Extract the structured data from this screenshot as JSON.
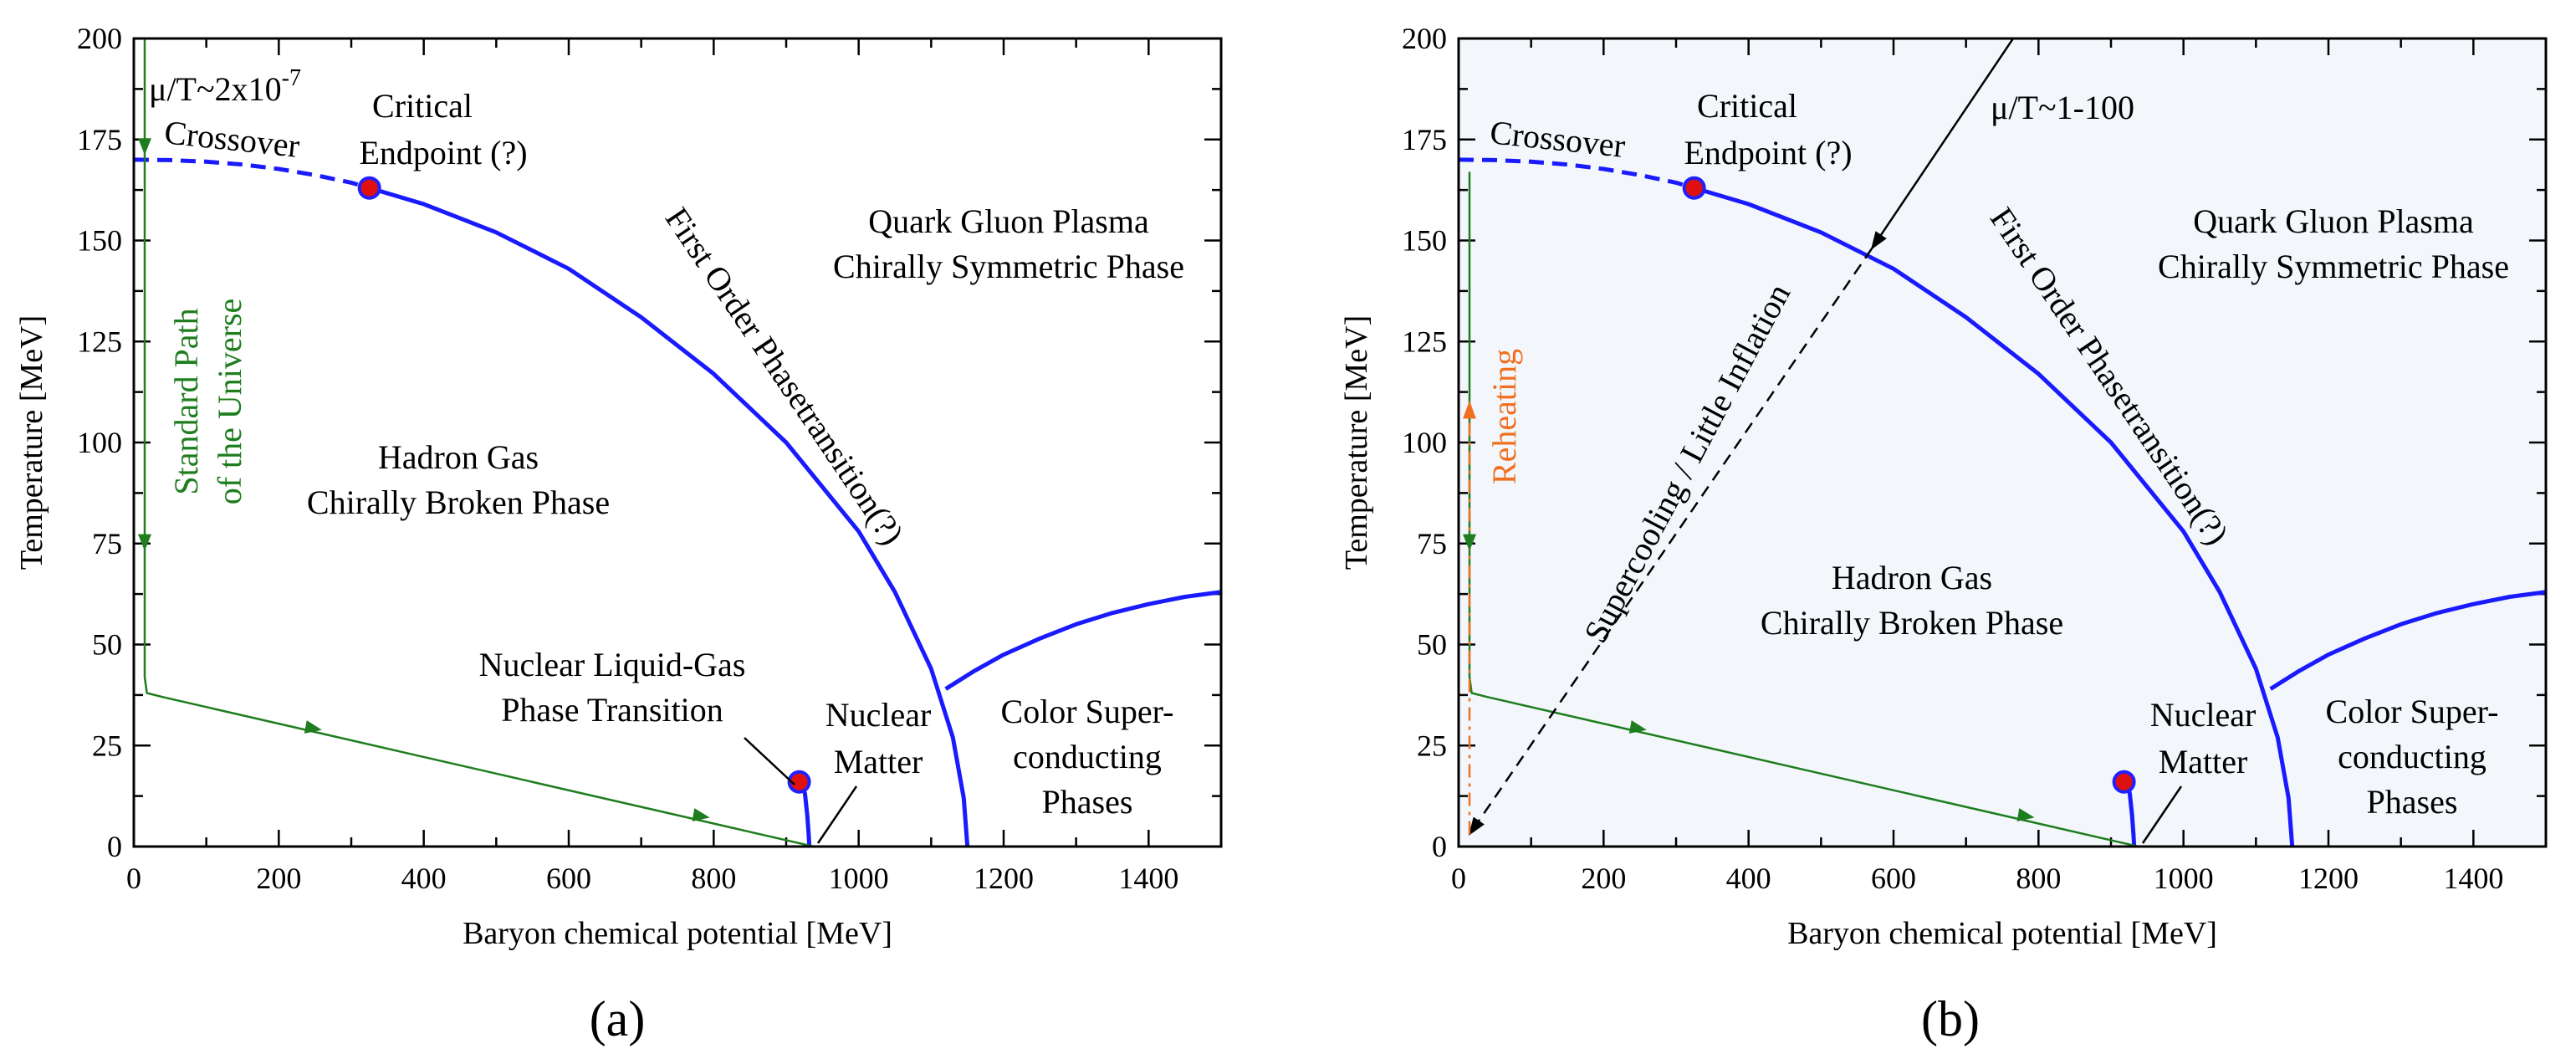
{
  "colors": {
    "phase_line": "#1a1aff",
    "path_green": "#1e7d1e",
    "reheat_orange": "#f07020",
    "point_fill": "#e01010",
    "point_stroke": "#2020ff",
    "axis": "#000000",
    "panel_b_bg": "#f3f7fb"
  },
  "chart_data": [
    {
      "type": "line",
      "panel_label": "(a)",
      "xlabel": "Baryon chemical potential [MeV]",
      "ylabel": "Temperature [MeV]",
      "xlim": [
        0,
        1500
      ],
      "ylim": [
        0,
        200
      ],
      "xticks": [
        0,
        200,
        400,
        600,
        800,
        1000,
        1200,
        1400
      ],
      "yticks": [
        0,
        25,
        50,
        75,
        100,
        125,
        150,
        175,
        200
      ],
      "series": [
        {
          "name": "Crossover",
          "style": "dashed",
          "color": "phase_line",
          "x": [
            0,
            50,
            100,
            150,
            200,
            250,
            300,
            325
          ],
          "y": [
            170,
            169.9,
            169.5,
            168.8,
            167.7,
            166.2,
            164.3,
            163
          ]
        },
        {
          "name": "First Order Phasetransition",
          "style": "solid",
          "color": "phase_line",
          "x": [
            325,
            400,
            500,
            600,
            700,
            800,
            900,
            1000,
            1050,
            1100,
            1130,
            1145,
            1150
          ],
          "y": [
            163,
            159,
            152,
            143,
            131,
            117,
            100,
            78,
            63,
            44,
            27,
            12,
            0
          ]
        },
        {
          "name": "Color superconducting boundary",
          "style": "solid",
          "color": "phase_line",
          "x": [
            1120,
            1160,
            1200,
            1250,
            1300,
            1350,
            1400,
            1450,
            1500
          ],
          "y": [
            39,
            43.5,
            47.5,
            51.5,
            55,
            57.8,
            60,
            61.8,
            63
          ]
        },
        {
          "name": "Nuclear liquid-gas line",
          "style": "solid",
          "color": "phase_line",
          "x": [
            922,
            926,
            929,
            931,
            932
          ],
          "y": [
            16,
            13,
            8,
            3,
            0
          ]
        },
        {
          "name": "Standard Path of the Universe",
          "style": "solid",
          "color": "path_green",
          "x": [
            15,
            15,
            18,
            40,
            938
          ],
          "y": [
            200,
            42,
            38,
            37,
            0
          ]
        }
      ],
      "points": [
        {
          "name": "Critical Endpoint",
          "x": 325,
          "y": 163
        },
        {
          "name": "Nuclear liquid-gas endpoint",
          "x": 918,
          "y": 16
        }
      ],
      "labels": {
        "mu_over_T": "μ/T~2x10",
        "mu_over_T_exp": "-7",
        "crossover": "Crossover",
        "critical_1": "Critical",
        "critical_2": "Endpoint (?)",
        "qgp_1": "Quark Gluon Plasma",
        "qgp_2": "Chirally Symmetric Phase",
        "first_order": "First Order Phasetransition(?)",
        "hadron_1": "Hadron Gas",
        "hadron_2": "Chirally Broken Phase",
        "standard_1": "Standard Path",
        "standard_2": "of the Universe",
        "nlg_1": "Nuclear Liquid-Gas",
        "nlg_2": "Phase Transition",
        "nuclear_1": "Nuclear",
        "nuclear_2": "Matter",
        "csc_1": "Color Super-",
        "csc_2": "conducting",
        "csc_3": "Phases"
      }
    },
    {
      "type": "line",
      "panel_label": "(b)",
      "xlabel": "Baryon chemical potential [MeV]",
      "ylabel": "Temperature [MeV]",
      "xlim": [
        0,
        1500
      ],
      "ylim": [
        0,
        200
      ],
      "xticks": [
        0,
        200,
        400,
        600,
        800,
        1000,
        1200,
        1400
      ],
      "yticks": [
        0,
        25,
        50,
        75,
        100,
        125,
        150,
        175,
        200
      ],
      "series": [
        {
          "name": "Crossover",
          "style": "dashed",
          "color": "phase_line",
          "x": [
            0,
            50,
            100,
            150,
            200,
            250,
            300,
            325
          ],
          "y": [
            170,
            169.9,
            169.5,
            168.8,
            167.7,
            166.2,
            164.3,
            163
          ]
        },
        {
          "name": "First Order Phasetransition",
          "style": "solid",
          "color": "phase_line",
          "x": [
            325,
            400,
            500,
            600,
            700,
            800,
            900,
            1000,
            1050,
            1100,
            1130,
            1145,
            1150
          ],
          "y": [
            163,
            159,
            152,
            143,
            131,
            117,
            100,
            78,
            63,
            44,
            27,
            12,
            0
          ]
        },
        {
          "name": "Color superconducting boundary",
          "style": "solid",
          "color": "phase_line",
          "x": [
            1120,
            1160,
            1200,
            1250,
            1300,
            1350,
            1400,
            1450,
            1500
          ],
          "y": [
            39,
            43.5,
            47.5,
            51.5,
            55,
            57.8,
            60,
            61.8,
            63
          ]
        },
        {
          "name": "Nuclear liquid-gas line",
          "style": "solid",
          "color": "phase_line",
          "x": [
            922,
            926,
            929,
            931,
            932
          ],
          "y": [
            16,
            13,
            8,
            3,
            0
          ]
        },
        {
          "name": "Path of the Universe",
          "style": "solid",
          "color": "path_green",
          "x": [
            15,
            15,
            18,
            40,
            938
          ],
          "y": [
            167,
            42,
            38,
            37,
            0
          ]
        },
        {
          "name": "Supercooling / Little Inflation",
          "style": "dashed",
          "color": "axis",
          "x": [
            570,
            15
          ],
          "y": [
            148,
            3
          ]
        },
        {
          "name": "mu/T arrow",
          "style": "solid",
          "color": "axis",
          "x": [
            765,
            570
          ],
          "y": [
            200,
            148
          ]
        },
        {
          "name": "Reheating",
          "style": "dashdot",
          "color": "reheat_orange",
          "x": [
            15,
            15
          ],
          "y": [
            3,
            110
          ]
        }
      ],
      "points": [
        {
          "name": "Critical Endpoint",
          "x": 325,
          "y": 163
        },
        {
          "name": "Nuclear liquid-gas endpoint",
          "x": 918,
          "y": 16
        }
      ],
      "labels": {
        "mu_over_T": "μ/T~1-100",
        "crossover": "Crossover",
        "critical_1": "Critical",
        "critical_2": "Endpoint (?)",
        "qgp_1": "Quark Gluon Plasma",
        "qgp_2": "Chirally Symmetric Phase",
        "first_order": "First Order Phasetransition(?)",
        "hadron_1": "Hadron Gas",
        "hadron_2": "Chirally Broken Phase",
        "supercooling": "Supercooling / Little Inflation",
        "reheating": "Reheating",
        "nuclear_1": "Nuclear",
        "nuclear_2": "Matter",
        "csc_1": "Color Super-",
        "csc_2": "conducting",
        "csc_3": "Phases"
      }
    }
  ]
}
